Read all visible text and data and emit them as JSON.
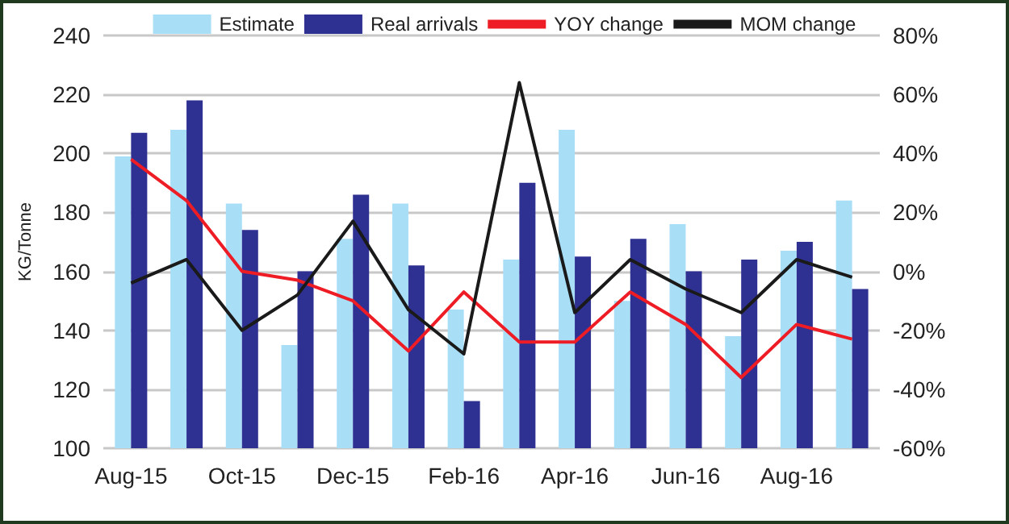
{
  "chart_data": {
    "type": "bar",
    "ylabel": "KG/Tonne",
    "categories": [
      "Aug-15",
      null,
      "Oct-15",
      null,
      "Dec-15",
      null,
      "Feb-16",
      null,
      "Apr-16",
      null,
      "Jun-16",
      null,
      "Aug-16",
      null
    ],
    "series": [
      {
        "name": "Estimate",
        "color": "#a9def7",
        "values": [
          199,
          208,
          183,
          135,
          171,
          183,
          147,
          164,
          208,
          150,
          176,
          138,
          167,
          184
        ]
      },
      {
        "name": "Real arrivals",
        "color": "#2e3192",
        "values": [
          207,
          218,
          174,
          160,
          186,
          162,
          116,
          190,
          165,
          171,
          160,
          164,
          170,
          154
        ]
      },
      {
        "name": "YOY change",
        "type": "line",
        "axis": "y2",
        "color": "#ee1c25",
        "values": [
          38,
          24,
          0,
          -3,
          -10,
          -27,
          -7,
          -24,
          -24,
          -7,
          -18,
          -36,
          -18,
          -23
        ]
      },
      {
        "name": "MOM change",
        "type": "line",
        "axis": "y2",
        "color": "#1a1a1a",
        "values": [
          -4,
          4,
          -20,
          -8,
          17,
          -13,
          -28,
          64,
          -14,
          4,
          -6,
          -14,
          4,
          -2
        ]
      }
    ],
    "ylim": [
      100,
      240
    ],
    "yticks": [
      100,
      120,
      140,
      160,
      180,
      200,
      220,
      240
    ],
    "y2lim": [
      -60,
      80
    ],
    "y2ticks": [
      {
        "value": -60,
        "label": "-60%"
      },
      {
        "value": -40,
        "label": "-40%"
      },
      {
        "value": -20,
        "label": "-20%"
      },
      {
        "value": 0,
        "label": "0%"
      },
      {
        "value": 20,
        "label": "20%"
      },
      {
        "value": 40,
        "label": "40%"
      },
      {
        "value": 60,
        "label": "60%"
      },
      {
        "value": 80,
        "label": "80%"
      }
    ],
    "grid": "y",
    "legend": "top",
    "marker": "none",
    "line_style": "solid"
  }
}
